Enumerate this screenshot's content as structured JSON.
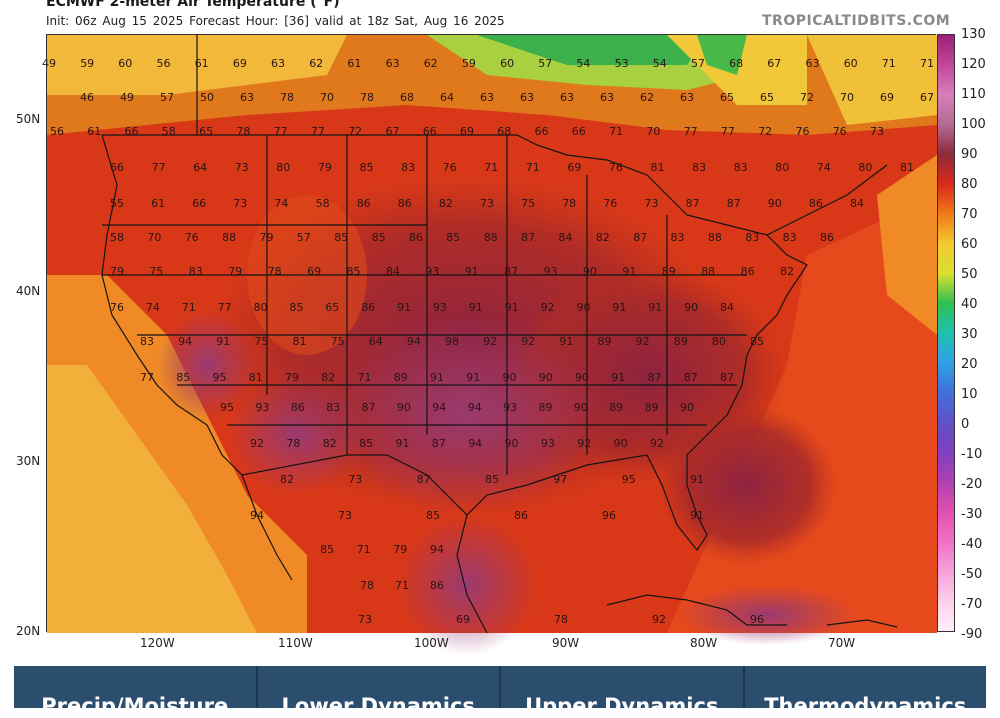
{
  "header": {
    "title": "ECMWF 2-meter Air Temperature (°F)",
    "subtitle": "Init: 06z Aug 15 2025   Forecast Hour: [36]   valid at 18z Sat, Aug 16 2025",
    "brand": "TROPICALTIDBITS.COM"
  },
  "colorbar": {
    "labels": [
      "130",
      "120",
      "110",
      "100",
      "90",
      "80",
      "70",
      "60",
      "50",
      "40",
      "30",
      "20",
      "10",
      "0",
      "-10",
      "-20",
      "-30",
      "-40",
      "-50",
      "-70",
      "-90"
    ],
    "colors": [
      "#9e1f7a",
      "#c2479c",
      "#d67fb9",
      "#b56a93",
      "#8c2a3a",
      "#d92a1a",
      "#f07a1a",
      "#f5c830",
      "#d8e030",
      "#30c050",
      "#20c0b0",
      "#30a0e8",
      "#4070d8",
      "#6050c8",
      "#8040c0",
      "#b040b0",
      "#e050b0",
      "#f070c8",
      "#f8a0d8",
      "#fcd0ec",
      "#fef0fa"
    ]
  },
  "axes": {
    "lat_labels": [
      "50N",
      "40N",
      "30N",
      "20N"
    ],
    "lon_labels": [
      "120W",
      "110W",
      "100W",
      "90W",
      "80W",
      "70W"
    ]
  },
  "map": {
    "temperature_rows": [
      [
        "49",
        "59",
        "60",
        "56",
        "61",
        "69",
        "63",
        "62",
        "61",
        "63",
        "62",
        "59",
        "60",
        "57",
        "54",
        "53",
        "54",
        "57",
        "68",
        "67",
        "63",
        "60",
        "71",
        "71"
      ],
      [
        "46",
        "49",
        "57",
        "50",
        "63",
        "78",
        "70",
        "78",
        "68",
        "64",
        "63",
        "63",
        "63",
        "63",
        "62",
        "63",
        "65",
        "65",
        "72",
        "70",
        "69",
        "67"
      ],
      [
        "56",
        "61",
        "66",
        "58",
        "65",
        "78",
        "77",
        "77",
        "72",
        "67",
        "66",
        "69",
        "68",
        "66",
        "66",
        "71",
        "70",
        "77",
        "77",
        "72",
        "76",
        "76",
        "73"
      ],
      [
        "66",
        "77",
        "64",
        "73",
        "80",
        "79",
        "85",
        "83",
        "76",
        "71",
        "71",
        "69",
        "76",
        "81",
        "83",
        "83",
        "80",
        "74",
        "80",
        "81"
      ],
      [
        "55",
        "61",
        "66",
        "73",
        "74",
        "58",
        "86",
        "86",
        "82",
        "73",
        "75",
        "78",
        "76",
        "73",
        "87",
        "87",
        "90",
        "86",
        "84"
      ],
      [
        "58",
        "70",
        "76",
        "88",
        "79",
        "57",
        "85",
        "85",
        "86",
        "85",
        "88",
        "87",
        "84",
        "82",
        "87",
        "83",
        "88",
        "83",
        "83",
        "86"
      ],
      [
        "79",
        "75",
        "83",
        "79",
        "78",
        "69",
        "85",
        "84",
        "93",
        "91",
        "87",
        "93",
        "90",
        "91",
        "89",
        "88",
        "86",
        "82"
      ],
      [
        "76",
        "74",
        "71",
        "77",
        "80",
        "85",
        "65",
        "86",
        "91",
        "93",
        "91",
        "91",
        "92",
        "90",
        "91",
        "91",
        "90",
        "84"
      ],
      [
        "83",
        "94",
        "91",
        "75",
        "81",
        "75",
        "64",
        "94",
        "98",
        "92",
        "92",
        "91",
        "89",
        "92",
        "89",
        "80",
        "85"
      ],
      [
        "77",
        "85",
        "95",
        "81",
        "79",
        "82",
        "71",
        "89",
        "91",
        "91",
        "90",
        "90",
        "90",
        "91",
        "87",
        "87",
        "87"
      ],
      [
        "95",
        "93",
        "86",
        "83",
        "87",
        "90",
        "94",
        "94",
        "93",
        "89",
        "90",
        "89",
        "89",
        "90"
      ],
      [
        "92",
        "78",
        "82",
        "85",
        "91",
        "87",
        "94",
        "90",
        "93",
        "92",
        "90",
        "92"
      ],
      [
        "82",
        "73",
        "87",
        "85",
        "97",
        "95",
        "91"
      ],
      [
        "94",
        "73",
        "85",
        "86",
        "96",
        "91"
      ],
      [
        "85",
        "71",
        "79",
        "94"
      ],
      [
        "78",
        "71",
        "86"
      ],
      [
        "73",
        "69",
        "78",
        "92",
        "96"
      ]
    ]
  },
  "nav": [
    "Precip/Moisture",
    "Lower Dynamics",
    "Upper Dynamics",
    "Thermodynamics"
  ]
}
